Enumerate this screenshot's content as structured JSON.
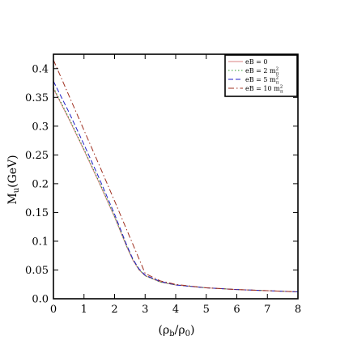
{
  "chart_data": {
    "type": "line",
    "title": "",
    "xlabel": "(ρ_b/ρ_0)",
    "ylabel": "M_u(GeV)",
    "xlim": [
      0,
      8
    ],
    "ylim": [
      0,
      0.425
    ],
    "x_ticks": [
      0,
      1,
      2,
      3,
      4,
      5,
      6,
      7,
      8
    ],
    "y_ticks": [
      0.0,
      0.05,
      0.1,
      0.15,
      0.2,
      0.25,
      0.3,
      0.35,
      0.4
    ],
    "x_tick_labels": [
      "0",
      "1",
      "2",
      "3",
      "4",
      "5",
      "6",
      "7",
      "8"
    ],
    "y_tick_labels": [
      "0.0",
      "0.05",
      "0.1",
      "0.15",
      "0.2",
      "0.25",
      "0.3",
      "0.35",
      "0.4"
    ],
    "grid": false,
    "legend": "top-right",
    "series": [
      {
        "name": "eB = 0",
        "color": "#d98080",
        "dash": "solid",
        "x": [
          0,
          0.5,
          1,
          1.5,
          2,
          2.2,
          2.4,
          2.6,
          2.8,
          3,
          3.5,
          4,
          5,
          6,
          7,
          8
        ],
        "y": [
          0.365,
          0.313,
          0.258,
          0.201,
          0.142,
          0.116,
          0.09,
          0.067,
          0.05,
          0.04,
          0.029,
          0.024,
          0.019,
          0.016,
          0.014,
          0.012
        ]
      },
      {
        "name": "eB = 2 m_π^2",
        "color": "#2e9a2e",
        "dash": "dotted",
        "x": [
          0,
          0.5,
          1,
          1.5,
          2,
          2.2,
          2.4,
          2.6,
          2.8,
          3,
          3.5,
          4,
          5,
          6,
          7,
          8
        ],
        "y": [
          0.367,
          0.315,
          0.26,
          0.203,
          0.143,
          0.117,
          0.091,
          0.068,
          0.051,
          0.04,
          0.029,
          0.024,
          0.019,
          0.016,
          0.014,
          0.012
        ]
      },
      {
        "name": "eB = 5 m_π^2",
        "color": "#2020c8",
        "dash": "dashed",
        "x": [
          0,
          0.5,
          1,
          1.5,
          2,
          2.2,
          2.4,
          2.6,
          2.8,
          3,
          3.5,
          4,
          5,
          6,
          7,
          8
        ],
        "y": [
          0.378,
          0.325,
          0.268,
          0.209,
          0.147,
          0.12,
          0.093,
          0.069,
          0.052,
          0.041,
          0.03,
          0.024,
          0.019,
          0.016,
          0.014,
          0.012
        ]
      },
      {
        "name": "eB = 10 m_π^2",
        "color": "#a03020",
        "dash": "dashdot",
        "x": [
          0,
          0.5,
          1,
          1.5,
          2,
          2.5,
          2.9,
          3,
          3.5,
          4,
          5,
          6,
          7,
          8
        ],
        "y": [
          0.415,
          0.354,
          0.293,
          0.232,
          0.17,
          0.107,
          0.057,
          0.044,
          0.031,
          0.025,
          0.019,
          0.016,
          0.014,
          0.012
        ]
      }
    ]
  }
}
